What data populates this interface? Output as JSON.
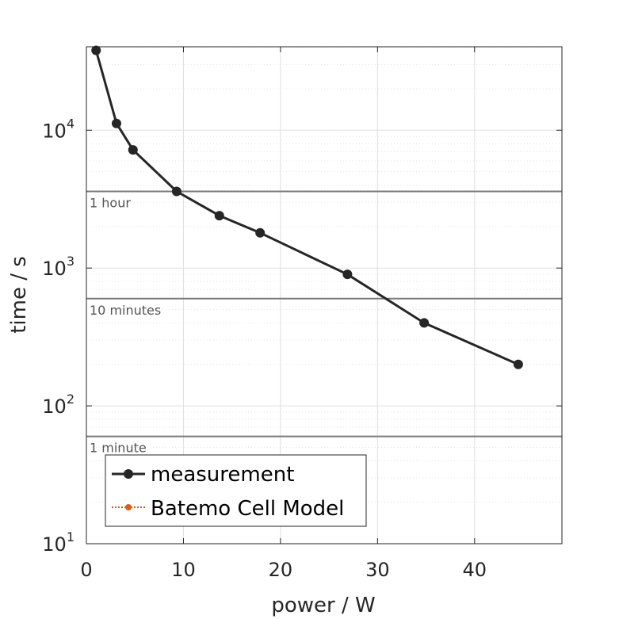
{
  "chart_data": {
    "type": "line",
    "xlabel": "power / W",
    "ylabel": "time / s",
    "xlim": [
      0,
      49
    ],
    "ylim": [
      10,
      40000
    ],
    "yscale": "log",
    "xticks": [
      0,
      10,
      20,
      30,
      40
    ],
    "yticks": [
      {
        "value": 10,
        "base": "10",
        "exp": "1"
      },
      {
        "value": 100,
        "base": "10",
        "exp": "2"
      },
      {
        "value": 1000,
        "base": "10",
        "exp": "3"
      },
      {
        "value": 10000,
        "base": "10",
        "exp": "4"
      }
    ],
    "grid": true,
    "series": [
      {
        "name": "measurement",
        "color": "#262626",
        "marker": "circle",
        "x": [
          1.0,
          3.1,
          4.8,
          9.3,
          13.7,
          17.9,
          26.9,
          34.8,
          44.5
        ],
        "y": [
          38000,
          11200,
          7200,
          3600,
          2400,
          1800,
          900,
          400,
          200
        ]
      },
      {
        "name": "Batemo Cell Model",
        "color": "#e35a0e",
        "marker": "circle",
        "linestyle": "dotted",
        "x": [],
        "y": []
      }
    ],
    "reference_lines": [
      {
        "value": 3600,
        "label": "1 hour"
      },
      {
        "value": 600,
        "label": "10 minutes"
      },
      {
        "value": 60,
        "label": "1 minute"
      }
    ],
    "legend_position": "bottom-left"
  }
}
